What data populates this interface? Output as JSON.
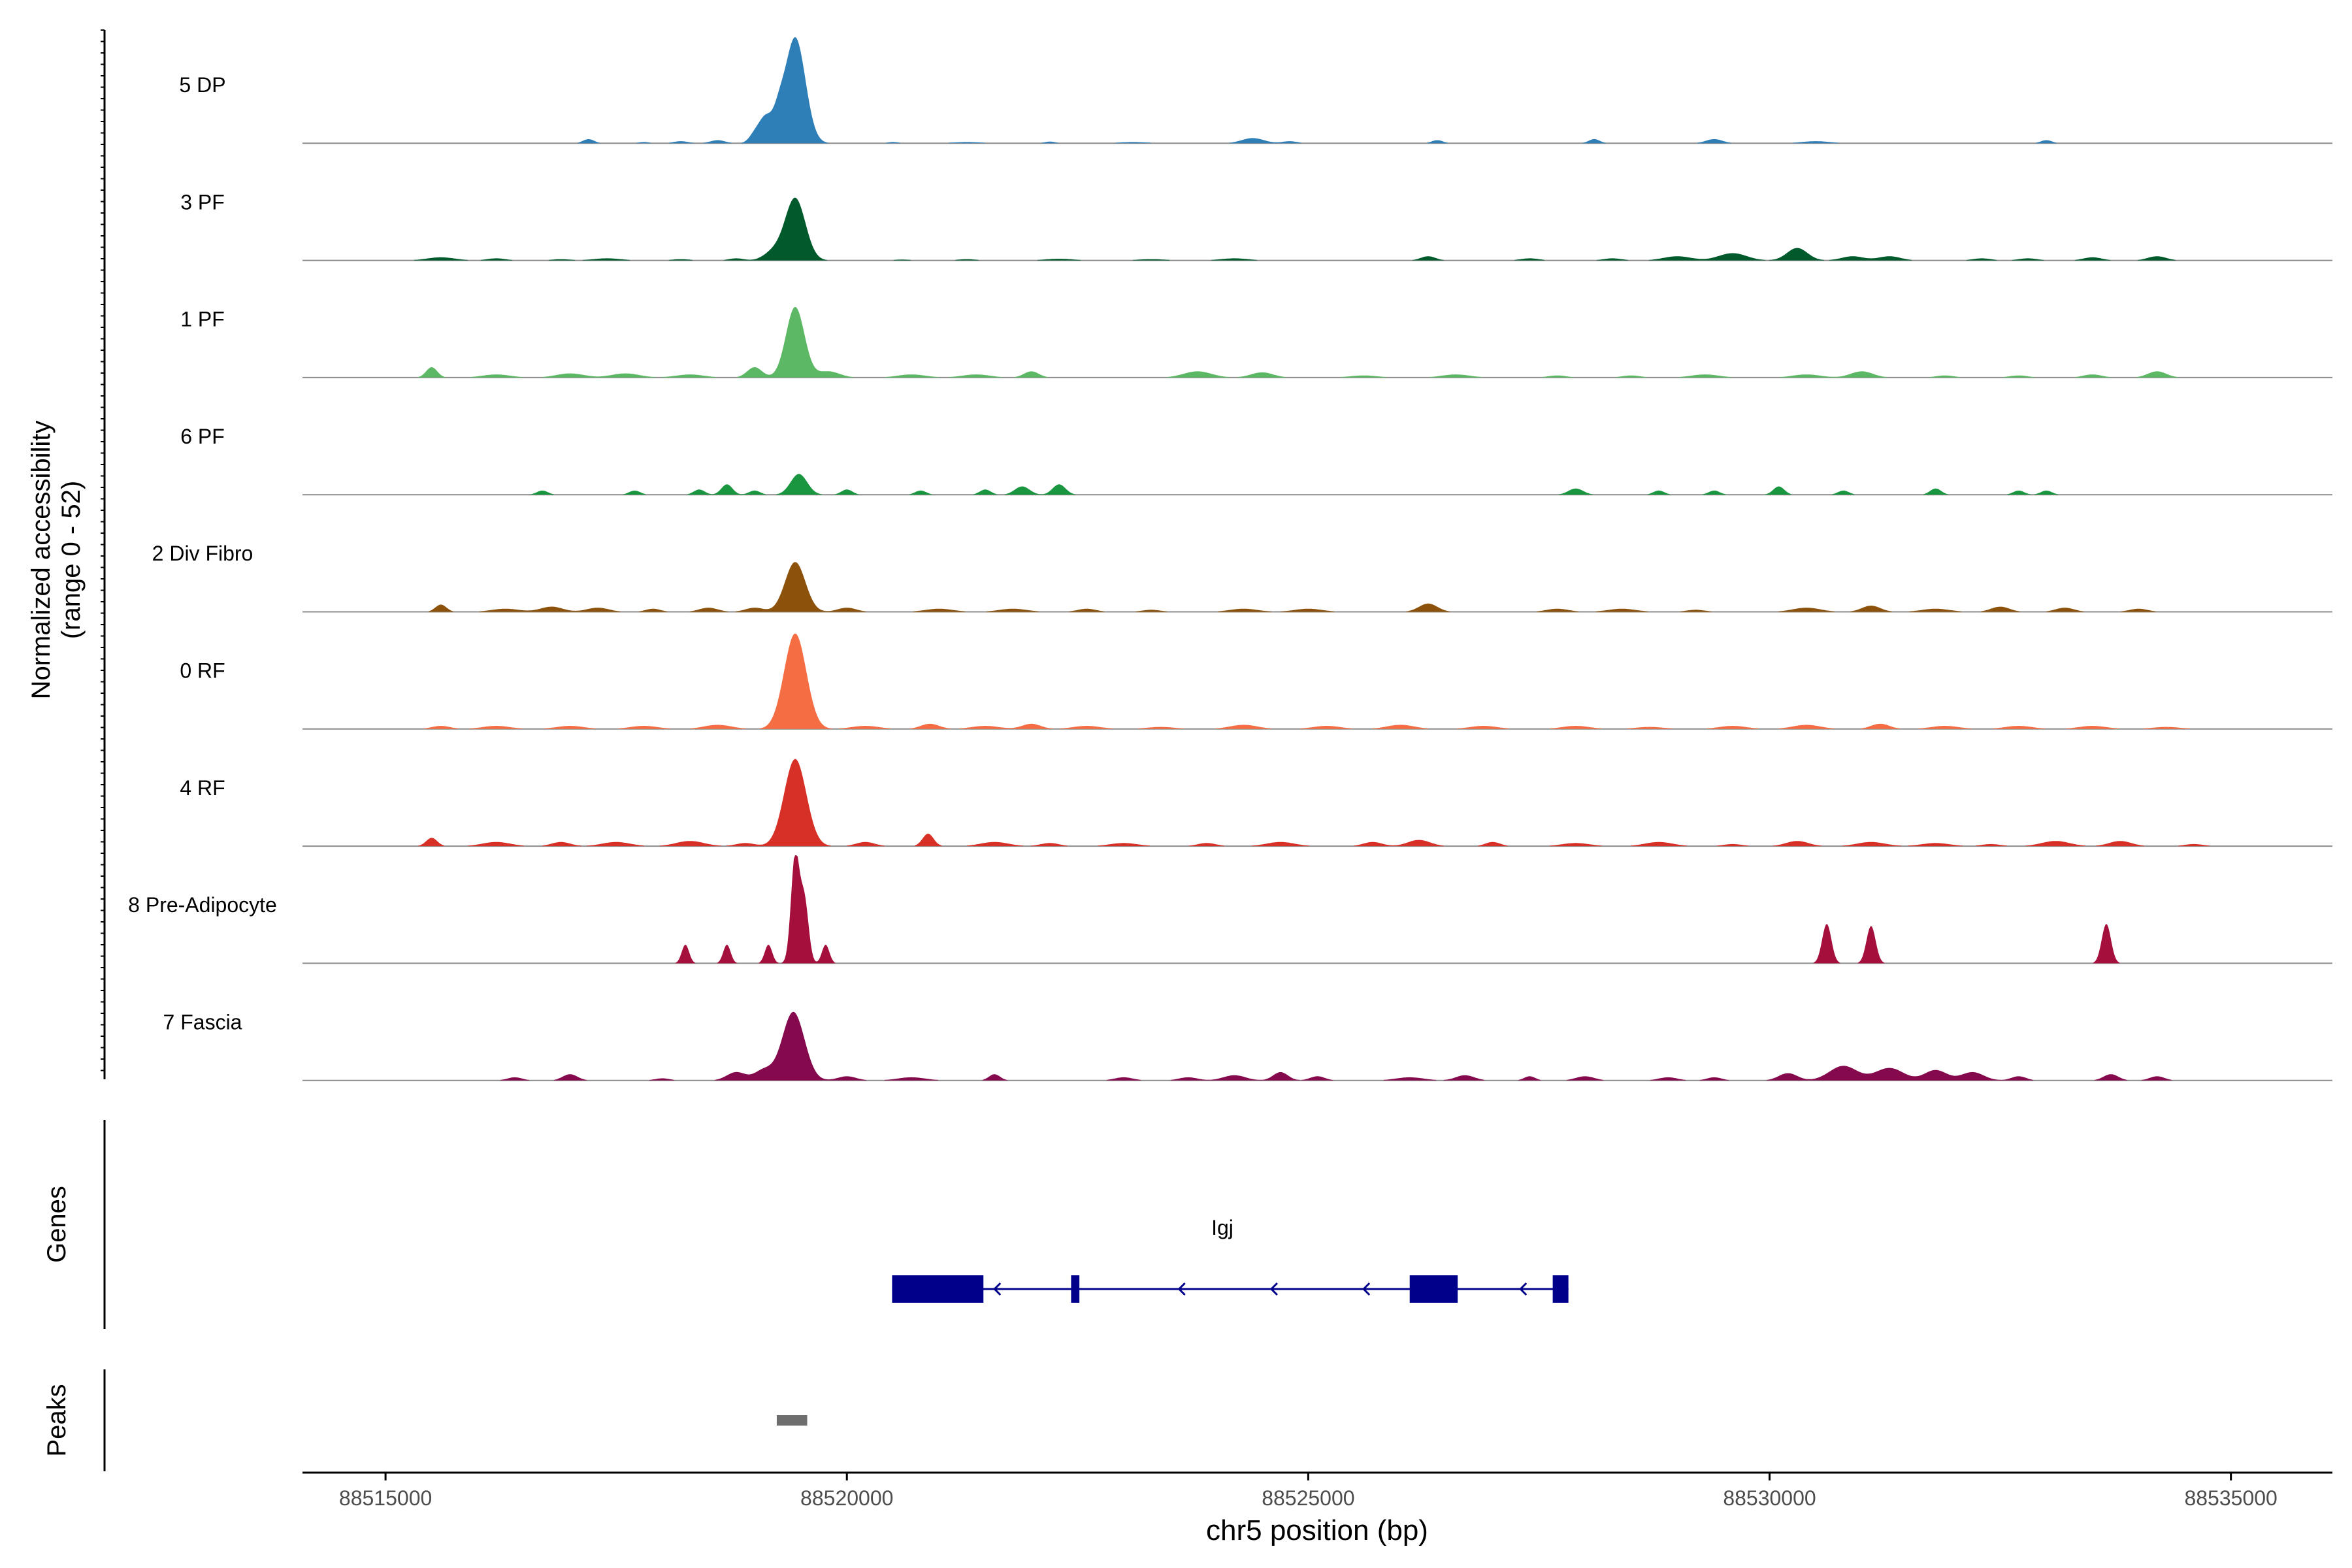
{
  "chart_data": {
    "type": "area",
    "ylabel_line1": "Normalized accessibility",
    "ylabel_line2": "(range 0 - 52)",
    "xlabel": "chr5 position (bp)",
    "xlim": [
      88514100,
      88536100
    ],
    "xticks": [
      "88515000",
      "88520000",
      "88525000",
      "88530000",
      "88535000"
    ],
    "ylim": [
      0,
      52
    ],
    "tracks": [
      {
        "name": "5 DP",
        "color": "#2E7EB8",
        "peaks": [
          [
            88514900,
            0.2,
            150
          ],
          [
            88517200,
            2,
            60
          ],
          [
            88517800,
            0.6,
            60
          ],
          [
            88518200,
            1,
            80
          ],
          [
            88518600,
            1.5,
            80
          ],
          [
            88519000,
            4,
            60
          ],
          [
            88519120,
            12,
            70
          ],
          [
            88519260,
            10,
            60
          ],
          [
            88519440,
            51,
            110
          ],
          [
            88520500,
            0.6,
            60
          ],
          [
            88521300,
            0.6,
            150
          ],
          [
            88522200,
            0.8,
            60
          ],
          [
            88523100,
            0.6,
            150
          ],
          [
            88524400,
            2.5,
            120
          ],
          [
            88524800,
            1,
            80
          ],
          [
            88526400,
            1.5,
            60
          ],
          [
            88528100,
            2,
            60
          ],
          [
            88529400,
            2,
            90
          ],
          [
            88530500,
            1,
            150
          ],
          [
            88533000,
            1.5,
            60
          ]
        ]
      },
      {
        "name": "3 PF",
        "color": "#005A2B",
        "peaks": [
          [
            88515600,
            1.5,
            150
          ],
          [
            88516200,
            1,
            100
          ],
          [
            88516900,
            0.6,
            100
          ],
          [
            88517400,
            1,
            150
          ],
          [
            88518200,
            0.6,
            100
          ],
          [
            88518800,
            1,
            80
          ],
          [
            88519200,
            4,
            100
          ],
          [
            88519440,
            30,
            110
          ],
          [
            88520600,
            0.4,
            100
          ],
          [
            88521300,
            0.6,
            100
          ],
          [
            88522300,
            0.8,
            150
          ],
          [
            88523300,
            0.6,
            150
          ],
          [
            88524200,
            1,
            150
          ],
          [
            88526300,
            2,
            80
          ],
          [
            88527400,
            1,
            100
          ],
          [
            88528300,
            1,
            100
          ],
          [
            88529000,
            2,
            150
          ],
          [
            88529600,
            3.5,
            150
          ],
          [
            88530300,
            6,
            110
          ],
          [
            88530900,
            2,
            120
          ],
          [
            88531300,
            2,
            120
          ],
          [
            88532300,
            1,
            100
          ],
          [
            88532800,
            1,
            100
          ],
          [
            88533500,
            1.5,
            100
          ],
          [
            88534200,
            2,
            100
          ]
        ]
      },
      {
        "name": "1 PF",
        "color": "#5DB865",
        "peaks": [
          [
            88515500,
            5,
            60
          ],
          [
            88516200,
            1.5,
            150
          ],
          [
            88517000,
            2,
            150
          ],
          [
            88517600,
            2,
            150
          ],
          [
            88518300,
            1.5,
            150
          ],
          [
            88519000,
            5,
            80
          ],
          [
            88519440,
            34,
            100
          ],
          [
            88519800,
            3,
            120
          ],
          [
            88520700,
            1.5,
            150
          ],
          [
            88521400,
            1.5,
            150
          ],
          [
            88522000,
            3,
            80
          ],
          [
            88523800,
            3,
            150
          ],
          [
            88524500,
            2.5,
            120
          ],
          [
            88525600,
            1,
            150
          ],
          [
            88526600,
            1.5,
            150
          ],
          [
            88527700,
            1,
            100
          ],
          [
            88528500,
            1,
            100
          ],
          [
            88529300,
            1.5,
            150
          ],
          [
            88530400,
            1.5,
            150
          ],
          [
            88531000,
            3,
            120
          ],
          [
            88531900,
            1,
            100
          ],
          [
            88532700,
            1,
            100
          ],
          [
            88533500,
            1.5,
            100
          ],
          [
            88534200,
            3,
            100
          ]
        ]
      },
      {
        "name": "6 PF",
        "color": "#1A9641",
        "peaks": [
          [
            88516700,
            2,
            60
          ],
          [
            88517700,
            2,
            60
          ],
          [
            88518400,
            2.5,
            60
          ],
          [
            88518700,
            5,
            60
          ],
          [
            88519000,
            2,
            60
          ],
          [
            88519480,
            10,
            90
          ],
          [
            88520000,
            2.5,
            60
          ],
          [
            88520800,
            2,
            60
          ],
          [
            88521500,
            2.5,
            60
          ],
          [
            88521900,
            4,
            80
          ],
          [
            88522300,
            5,
            70
          ],
          [
            88527900,
            3,
            80
          ],
          [
            88528800,
            2,
            60
          ],
          [
            88529400,
            2,
            60
          ],
          [
            88530100,
            4,
            60
          ],
          [
            88530800,
            2,
            60
          ],
          [
            88531800,
            3,
            60
          ],
          [
            88532700,
            2,
            60
          ],
          [
            88533000,
            2,
            60
          ]
        ]
      },
      {
        "name": "2 Div Fibro",
        "color": "#8C510A",
        "peaks": [
          [
            88515600,
            3.5,
            60
          ],
          [
            88516300,
            1.5,
            150
          ],
          [
            88516800,
            2.5,
            120
          ],
          [
            88517300,
            2,
            120
          ],
          [
            88517900,
            1.5,
            80
          ],
          [
            88518500,
            2,
            100
          ],
          [
            88519000,
            2,
            100
          ],
          [
            88519440,
            24,
            110
          ],
          [
            88520000,
            2,
            100
          ],
          [
            88521000,
            1.5,
            150
          ],
          [
            88521800,
            1.5,
            150
          ],
          [
            88522600,
            1.5,
            100
          ],
          [
            88523300,
            1,
            100
          ],
          [
            88524300,
            1.5,
            150
          ],
          [
            88525000,
            1.5,
            150
          ],
          [
            88526300,
            4,
            100
          ],
          [
            88527700,
            1.5,
            120
          ],
          [
            88528400,
            1.5,
            150
          ],
          [
            88529200,
            1,
            100
          ],
          [
            88530400,
            2,
            150
          ],
          [
            88531100,
            3,
            100
          ],
          [
            88531800,
            1.5,
            150
          ],
          [
            88532500,
            2.5,
            100
          ],
          [
            88533200,
            2,
            100
          ],
          [
            88534000,
            1.5,
            100
          ]
        ]
      },
      {
        "name": "0 RF",
        "color": "#F46D43",
        "peaks": [
          [
            88515600,
            1.5,
            100
          ],
          [
            88516200,
            1.5,
            150
          ],
          [
            88517000,
            1.5,
            150
          ],
          [
            88517800,
            1.5,
            150
          ],
          [
            88518600,
            2,
            150
          ],
          [
            88519440,
            46,
            120
          ],
          [
            88520200,
            1.5,
            150
          ],
          [
            88520900,
            2.5,
            100
          ],
          [
            88521500,
            1.5,
            150
          ],
          [
            88522000,
            2.5,
            100
          ],
          [
            88522600,
            1.5,
            150
          ],
          [
            88523400,
            1,
            150
          ],
          [
            88524300,
            2,
            150
          ],
          [
            88525200,
            1.5,
            150
          ],
          [
            88526000,
            2,
            150
          ],
          [
            88526900,
            1.5,
            150
          ],
          [
            88527900,
            1.5,
            150
          ],
          [
            88528700,
            1,
            150
          ],
          [
            88529600,
            1.5,
            150
          ],
          [
            88530400,
            2,
            150
          ],
          [
            88531200,
            2.5,
            100
          ],
          [
            88531900,
            1.5,
            150
          ],
          [
            88532700,
            1.5,
            150
          ],
          [
            88533500,
            1.5,
            150
          ],
          [
            88534300,
            1,
            150
          ]
        ]
      },
      {
        "name": "4 RF",
        "color": "#D73027",
        "peaks": [
          [
            88515500,
            4,
            60
          ],
          [
            88516200,
            2,
            150
          ],
          [
            88516900,
            2,
            100
          ],
          [
            88517500,
            2,
            150
          ],
          [
            88518300,
            2.5,
            150
          ],
          [
            88518900,
            1.5,
            100
          ],
          [
            88519440,
            42,
            120
          ],
          [
            88520200,
            2,
            100
          ],
          [
            88520880,
            6,
            60
          ],
          [
            88521600,
            2,
            150
          ],
          [
            88522200,
            1.5,
            100
          ],
          [
            88523000,
            1.5,
            150
          ],
          [
            88523900,
            1.5,
            100
          ],
          [
            88524700,
            2,
            150
          ],
          [
            88525700,
            2,
            100
          ],
          [
            88526200,
            3,
            120
          ],
          [
            88527000,
            2,
            80
          ],
          [
            88527900,
            1.5,
            150
          ],
          [
            88528800,
            2,
            150
          ],
          [
            88529600,
            1,
            100
          ],
          [
            88530300,
            2.5,
            120
          ],
          [
            88531100,
            2,
            150
          ],
          [
            88531800,
            1.5,
            150
          ],
          [
            88532400,
            1,
            100
          ],
          [
            88533100,
            2.5,
            150
          ],
          [
            88533800,
            2.5,
            120
          ],
          [
            88534600,
            1,
            100
          ]
        ]
      },
      {
        "name": "8 Pre-Adipocyte",
        "color": "#A50F3C",
        "peaks": [
          [
            88518250,
            9,
            40
          ],
          [
            88518700,
            9,
            40
          ],
          [
            88519150,
            9,
            40
          ],
          [
            88519440,
            52,
            45
          ],
          [
            88519540,
            30,
            45
          ],
          [
            88519770,
            9,
            40
          ],
          [
            88530620,
            19,
            50
          ],
          [
            88531100,
            18,
            50
          ],
          [
            88533650,
            19,
            50
          ]
        ]
      },
      {
        "name": "7 Fascia",
        "color": "#85094D",
        "peaks": [
          [
            88516400,
            1.5,
            80
          ],
          [
            88517000,
            3,
            80
          ],
          [
            88518000,
            1,
            80
          ],
          [
            88518800,
            4,
            100
          ],
          [
            88519100,
            5,
            100
          ],
          [
            88519420,
            33,
            120
          ],
          [
            88520000,
            2,
            100
          ],
          [
            88520700,
            1.5,
            150
          ],
          [
            88521600,
            3,
            60
          ],
          [
            88523000,
            1.5,
            100
          ],
          [
            88523700,
            1.5,
            100
          ],
          [
            88524200,
            2.5,
            120
          ],
          [
            88524700,
            4,
            80
          ],
          [
            88525100,
            2,
            80
          ],
          [
            88526100,
            1.5,
            150
          ],
          [
            88526700,
            2.5,
            100
          ],
          [
            88527400,
            2,
            60
          ],
          [
            88528000,
            2,
            100
          ],
          [
            88528900,
            1.5,
            100
          ],
          [
            88529400,
            1.5,
            80
          ],
          [
            88530200,
            3.5,
            100
          ],
          [
            88530800,
            7,
            150
          ],
          [
            88531300,
            6,
            150
          ],
          [
            88531800,
            5,
            120
          ],
          [
            88532200,
            4,
            120
          ],
          [
            88532700,
            2,
            80
          ],
          [
            88533700,
            3,
            80
          ],
          [
            88534200,
            2,
            80
          ]
        ]
      }
    ],
    "gene_panel": {
      "label": "Genes",
      "gene_name": "Igj",
      "strand": "-",
      "transcript": [
        88520490,
        88527820
      ],
      "exons": [
        [
          88520490,
          88521480
        ],
        [
          88522430,
          88522520
        ],
        [
          88526100,
          88526620
        ],
        [
          88527650,
          88527820
        ]
      ]
    },
    "peaks_panel": {
      "label": "Peaks",
      "regions": [
        [
          88519240,
          88519570
        ]
      ]
    },
    "colors": {
      "axis": "#000000",
      "baseline": "#8C8C8C",
      "gene": "#00008B",
      "peak_region": "#6E6E6E",
      "tick_label": "#4D4D4D"
    }
  }
}
